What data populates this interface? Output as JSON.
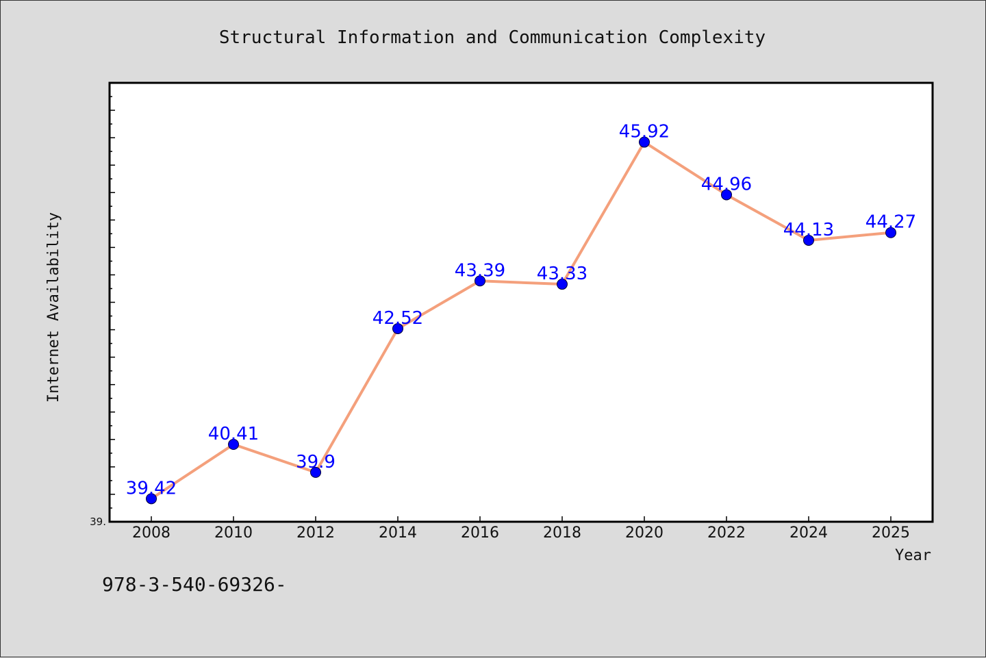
{
  "chart_data": {
    "type": "line",
    "title": "Structural Information and Communication Complexity",
    "xlabel": "Year",
    "ylabel": "Internet Availability",
    "categories": [
      "2008",
      "2010",
      "2012",
      "2014",
      "2016",
      "2018",
      "2020",
      "2022",
      "2024",
      "2025"
    ],
    "series": [
      {
        "values": [
          39.42,
          40.41,
          39.9,
          42.52,
          43.39,
          43.33,
          45.92,
          44.96,
          44.13,
          44.27
        ],
        "labels": [
          "39.42",
          "40.41",
          "39.9",
          "42.52",
          "43.39",
          "43.33",
          "45.92",
          "44.96",
          "44.13",
          "44.27"
        ]
      }
    ],
    "ylim": [
      39.0,
      47.0
    ],
    "y_tick_label": "39.",
    "grid": false,
    "line_color": "#f4a07c",
    "marker_color": "#0000ff",
    "label_color": "#0000ff",
    "plot_background": "#ffffff",
    "page_background": "#dcdcdc"
  },
  "footnote": "978-3-540-69326-"
}
